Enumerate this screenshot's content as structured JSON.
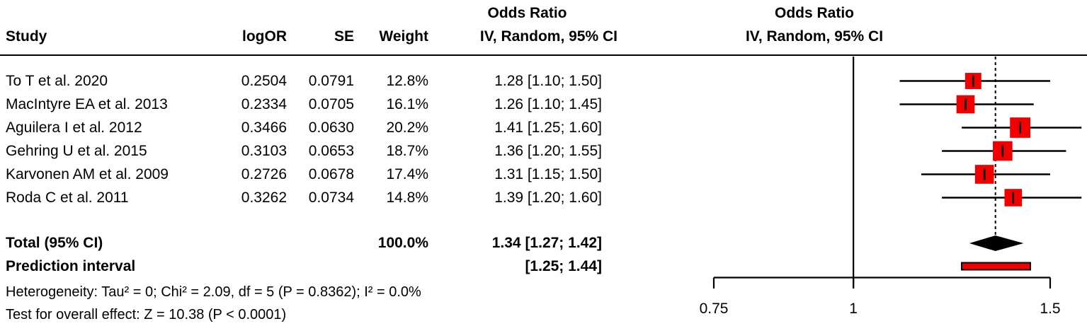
{
  "header": {
    "odds_ratio_left": "Odds Ratio",
    "col_study": "Study",
    "col_logor": "logOR",
    "col_se": "SE",
    "col_weight": "Weight",
    "col_ci": "IV, Random, 95% CI",
    "odds_ratio_right": "Odds Ratio",
    "ci_right": "IV, Random, 95% CI"
  },
  "studies": [
    {
      "study": "To T et al. 2020",
      "logor": "0.2504",
      "se": "0.0791",
      "weight": "12.8%",
      "ci": "1.28 [1.10; 1.50]"
    },
    {
      "study": "MacIntyre EA et al. 2013",
      "logor": "0.2334",
      "se": "0.0705",
      "weight": "16.1%",
      "ci": "1.26 [1.10; 1.45]"
    },
    {
      "study": "Aguilera I et al. 2012",
      "logor": "0.3466",
      "se": "0.0630",
      "weight": "20.2%",
      "ci": "1.41 [1.25; 1.60]"
    },
    {
      "study": "Gehring U et al. 2015",
      "logor": "0.3103",
      "se": "0.0653",
      "weight": "18.7%",
      "ci": "1.36 [1.20; 1.55]"
    },
    {
      "study": "Karvonen AM et al. 2009",
      "logor": "0.2726",
      "se": "0.0678",
      "weight": "17.4%",
      "ci": "1.31 [1.15; 1.50]"
    },
    {
      "study": "Roda C et al. 2011",
      "logor": "0.3262",
      "se": "0.0734",
      "weight": "14.8%",
      "ci": "1.39 [1.20; 1.60]"
    }
  ],
  "total": {
    "label": "Total (95% CI)",
    "weight": "100.0%",
    "ci": "1.34 [1.27; 1.42]"
  },
  "prediction": {
    "label": "Prediction interval",
    "ci": "[1.25; 1.44]"
  },
  "heterogeneity": "Heterogeneity: Tau² = 0; Chi² = 2.09, df = 5 (P = 0.8362); I² = 0.0%",
  "overall_effect": "Test for overall effect: Z = 10.38 (P < 0.0001)",
  "chart_data": {
    "type": "forest",
    "x_scale": "log",
    "axis_ticks": [
      0.75,
      1,
      1.5
    ],
    "axis_tick_labels": [
      "0.75",
      "1",
      "1.5"
    ],
    "ref_line": 1,
    "pooled_dashed_line": 1.34,
    "studies": [
      {
        "name": "To T et al. 2020",
        "or": 1.28,
        "lo": 1.1,
        "hi": 1.5,
        "weight_pct": 12.8
      },
      {
        "name": "MacIntyre EA et al. 2013",
        "or": 1.26,
        "lo": 1.1,
        "hi": 1.45,
        "weight_pct": 16.1
      },
      {
        "name": "Aguilera I et al. 2012",
        "or": 1.41,
        "lo": 1.25,
        "hi": 1.6,
        "weight_pct": 20.2
      },
      {
        "name": "Gehring U et al. 2015",
        "or": 1.36,
        "lo": 1.2,
        "hi": 1.55,
        "weight_pct": 18.7
      },
      {
        "name": "Karvonen AM et al. 2009",
        "or": 1.31,
        "lo": 1.15,
        "hi": 1.5,
        "weight_pct": 17.4
      },
      {
        "name": "Roda C et al. 2011",
        "or": 1.39,
        "lo": 1.2,
        "hi": 1.6,
        "weight_pct": 14.8
      }
    ],
    "diamond": {
      "or": 1.34,
      "lo": 1.27,
      "hi": 1.42
    },
    "prediction_interval": {
      "lo": 1.25,
      "hi": 1.44
    },
    "colors": {
      "square": "#f20000",
      "prediction_bar": "#f20000",
      "diamond": "#000000",
      "line": "#000000"
    }
  }
}
